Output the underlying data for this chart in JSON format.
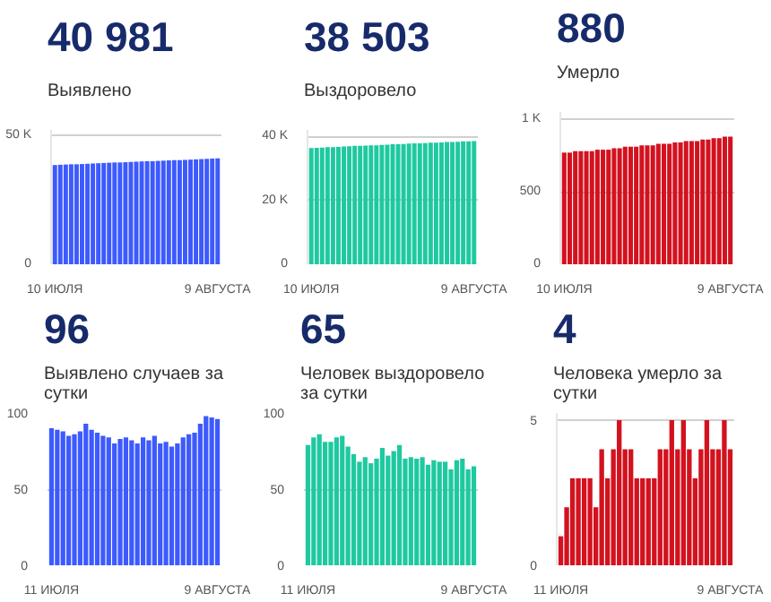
{
  "chart_data": [
    {
      "type": "bar",
      "title": "40 981",
      "subtitle": "Выявлено",
      "color": "#3d5afe",
      "grid": "y",
      "categories": [
        "10 ИЮЛЯ",
        null,
        null,
        null,
        null,
        null,
        null,
        null,
        null,
        null,
        null,
        null,
        null,
        null,
        null,
        null,
        null,
        null,
        null,
        null,
        null,
        null,
        null,
        null,
        null,
        null,
        null,
        null,
        null,
        null,
        "9 АВГУСТА"
      ],
      "values": [
        38400,
        38500,
        38600,
        38700,
        38700,
        38800,
        38900,
        39000,
        39100,
        39200,
        39300,
        39400,
        39400,
        39500,
        39600,
        39700,
        39800,
        39900,
        39900,
        40000,
        40100,
        40200,
        40300,
        40300,
        40400,
        40500,
        40600,
        40700,
        40800,
        40900,
        41000
      ],
      "ylim": [
        0,
        52000
      ],
      "yticks": [
        0,
        {
          "value": 50000,
          "label": "50 K"
        }
      ]
    },
    {
      "type": "bar",
      "title": "38 503",
      "subtitle": "Выздоровело",
      "color": "#1fc9a0",
      "grid": "y",
      "categories": [
        "10 ИЮЛЯ",
        null,
        null,
        null,
        null,
        null,
        null,
        null,
        null,
        null,
        null,
        null,
        null,
        null,
        null,
        null,
        null,
        null,
        null,
        null,
        null,
        null,
        null,
        null,
        null,
        null,
        null,
        null,
        null,
        null,
        "9 АВГУСТА"
      ],
      "values": [
        36300,
        36400,
        36500,
        36600,
        36600,
        36700,
        36800,
        36900,
        37000,
        37000,
        37100,
        37200,
        37200,
        37300,
        37400,
        37500,
        37500,
        37600,
        37700,
        37800,
        37800,
        37900,
        38000,
        38000,
        38100,
        38200,
        38200,
        38300,
        38400,
        38400,
        38500
      ],
      "ylim": [
        0,
        42000
      ],
      "yticks": [
        0,
        {
          "value": 20000,
          "label": "20 K"
        },
        {
          "value": 40000,
          "label": "40 K"
        }
      ]
    },
    {
      "type": "bar",
      "title": "880",
      "subtitle": "Умерло",
      "color": "#d3121f",
      "grid": "y",
      "categories": [
        "10 ИЮЛЯ",
        null,
        null,
        null,
        null,
        null,
        null,
        null,
        null,
        null,
        null,
        null,
        null,
        null,
        null,
        null,
        null,
        null,
        null,
        null,
        null,
        null,
        null,
        null,
        null,
        null,
        null,
        null,
        null,
        null,
        "9 АВГУСТА"
      ],
      "values": [
        770,
        770,
        780,
        780,
        780,
        780,
        790,
        790,
        790,
        800,
        800,
        810,
        810,
        810,
        820,
        820,
        820,
        830,
        830,
        830,
        840,
        840,
        850,
        850,
        850,
        860,
        860,
        870,
        870,
        880,
        880
      ],
      "ylim": [
        0,
        1050
      ],
      "yticks": [
        0,
        500,
        {
          "value": 1000,
          "label": "1 K"
        }
      ]
    },
    {
      "type": "bar",
      "title": "96",
      "subtitle": "Выявлено случаев за сутки",
      "color": "#3d5afe",
      "grid": "y",
      "categories": [
        "11 ИЮЛЯ",
        null,
        null,
        null,
        null,
        null,
        null,
        null,
        null,
        null,
        null,
        null,
        null,
        null,
        null,
        null,
        null,
        null,
        null,
        null,
        null,
        null,
        null,
        null,
        null,
        null,
        null,
        null,
        null,
        "9 АВГУСТА"
      ],
      "values": [
        90,
        89,
        88,
        85,
        86,
        88,
        93,
        89,
        87,
        85,
        84,
        80,
        83,
        84,
        82,
        80,
        84,
        82,
        85,
        80,
        81,
        78,
        80,
        84,
        86,
        87,
        93,
        98,
        97,
        96
      ],
      "ylim": [
        0,
        100
      ],
      "yticks": [
        0,
        50,
        100
      ]
    },
    {
      "type": "bar",
      "title": "65",
      "subtitle": "Человек выздоровело за сутки",
      "color": "#1fc9a0",
      "grid": "y",
      "categories": [
        "11 ИЮЛЯ",
        null,
        null,
        null,
        null,
        null,
        null,
        null,
        null,
        null,
        null,
        null,
        null,
        null,
        null,
        null,
        null,
        null,
        null,
        null,
        null,
        null,
        null,
        null,
        null,
        null,
        null,
        null,
        null,
        "9 АВГУСТА"
      ],
      "values": [
        79,
        84,
        86,
        81,
        81,
        84,
        85,
        78,
        73,
        68,
        71,
        67,
        70,
        77,
        72,
        75,
        79,
        70,
        71,
        70,
        71,
        66,
        69,
        68,
        68,
        63,
        69,
        70,
        63,
        65
      ],
      "ylim": [
        0,
        100
      ],
      "yticks": [
        0,
        50,
        100
      ]
    },
    {
      "type": "bar",
      "title": "4",
      "subtitle": "Человека умерло за сутки",
      "color": "#d3121f",
      "grid": "y",
      "categories": [
        "11 ИЮЛЯ",
        null,
        null,
        null,
        null,
        null,
        null,
        null,
        null,
        null,
        null,
        null,
        null,
        null,
        null,
        null,
        null,
        null,
        null,
        null,
        null,
        null,
        null,
        null,
        null,
        null,
        null,
        null,
        null,
        "9 АВГУСТА"
      ],
      "values": [
        1,
        2,
        3,
        3,
        3,
        3,
        2,
        4,
        3,
        4,
        5,
        4,
        4,
        3,
        3,
        3,
        3,
        4,
        4,
        5,
        4,
        5,
        4,
        3,
        4,
        5,
        4,
        4,
        5,
        4
      ],
      "ylim": [
        0,
        5.25
      ],
      "yticks": [
        0,
        5
      ]
    }
  ]
}
